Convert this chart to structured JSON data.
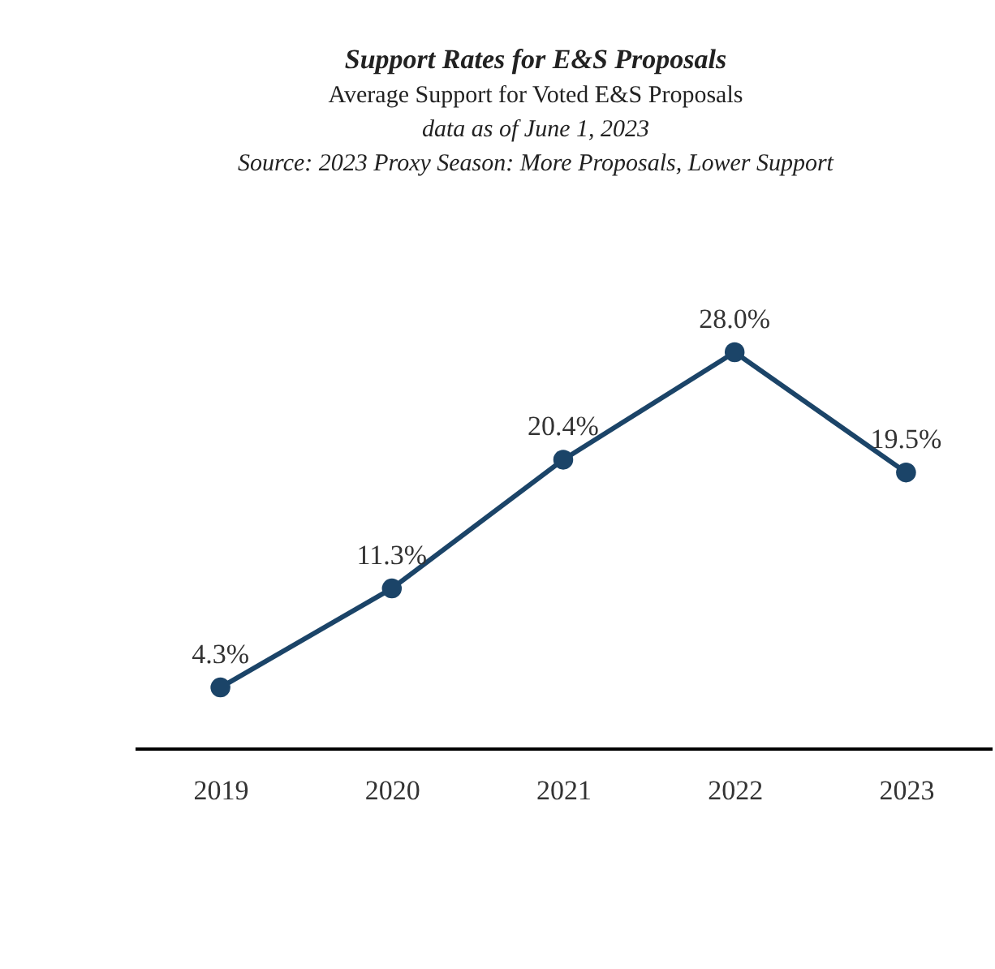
{
  "chart_data": {
    "type": "line",
    "title": "Support Rates for E&S Proposals",
    "subtitle": "Average Support for Voted E&S Proposals",
    "annotations": [
      "data as of June 1, 2023",
      "Source: 2023 Proxy Season: More Proposals, Lower Support"
    ],
    "categories": [
      "2019",
      "2020",
      "2021",
      "2022",
      "2023"
    ],
    "series": [
      {
        "color": "#1b4468",
        "values": [
          4.3,
          11.3,
          20.4,
          28.0,
          19.5
        ],
        "value_labels": [
          "4.3%",
          "11.3%",
          "20.4%",
          "28.0%",
          "19.5%"
        ]
      }
    ],
    "marker": "circle",
    "tick_labels": "x",
    "grid": false
  }
}
